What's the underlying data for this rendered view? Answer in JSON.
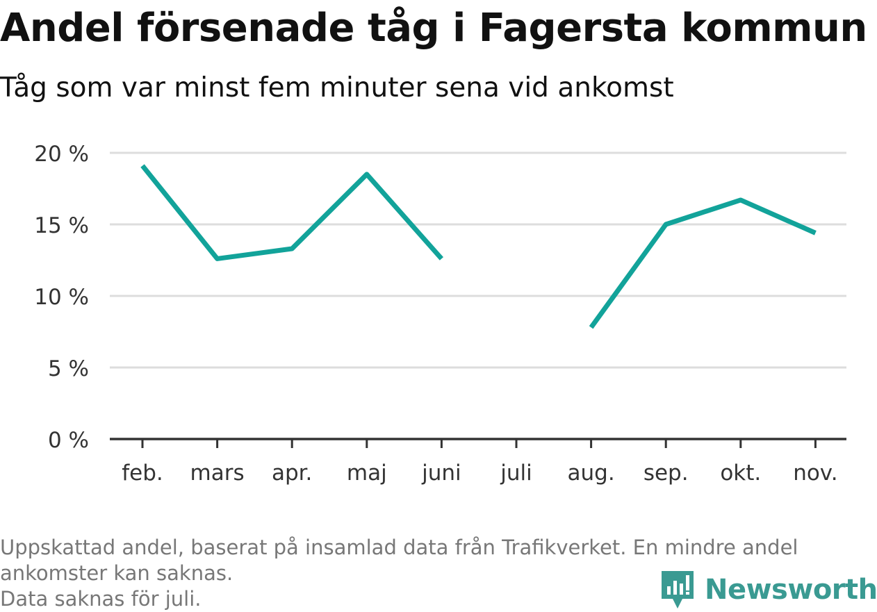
{
  "title": "Andel försenade tåg i Fagersta kommun",
  "subtitle": "Tåg som var minst fem minuter sena vid ankomst",
  "footer": {
    "line1": "Uppskattad andel, baserat på insamlad data från Trafikverket. En mindre andel",
    "line2": "ankomster kan saknas.",
    "line3": "Data saknas för juli."
  },
  "logo": {
    "text": "Newsworthy",
    "icon": "newsworthy-logo-icon"
  },
  "colors": {
    "line": "#12a39a",
    "grid": "#dddddd",
    "axis": "#333333",
    "logo": "#3a9a92"
  },
  "chart_data": {
    "type": "line",
    "title": "Andel försenade tåg i Fagersta kommun",
    "subtitle": "Tåg som var minst fem minuter sena vid ankomst",
    "categories": [
      "feb.",
      "mars",
      "apr.",
      "maj",
      "juni",
      "juli",
      "aug.",
      "sep.",
      "okt.",
      "nov."
    ],
    "series": [
      {
        "values": [
          19.1,
          12.6,
          13.3,
          18.5,
          12.6,
          null,
          7.8,
          15.0,
          16.7,
          14.4
        ]
      }
    ],
    "ylim": [
      0,
      20
    ],
    "yticks": [
      0,
      5,
      10,
      15,
      20
    ],
    "ytick_labels": [
      "0 %",
      "5 %",
      "10 %",
      "15 %",
      "20 %"
    ],
    "grid": true,
    "xlabel": "",
    "ylabel": ""
  }
}
